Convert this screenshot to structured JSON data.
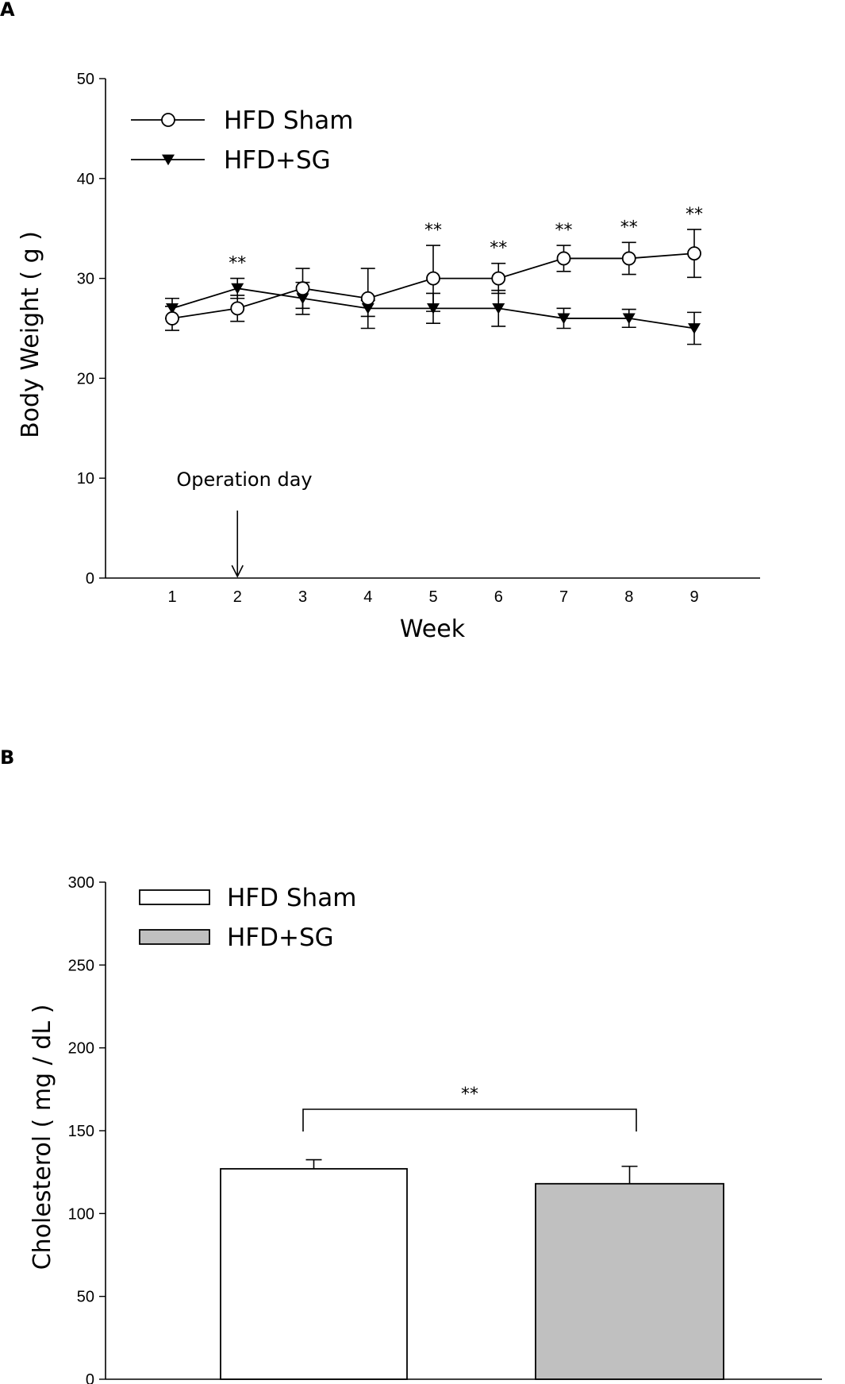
{
  "figure": {
    "panel_a_label": "A",
    "panel_b_label": "B"
  },
  "chart_data": [
    {
      "type": "line",
      "xlabel": "Week",
      "ylabel": "Body Weight ( g )",
      "ylim": [
        0,
        50
      ],
      "yticks": [
        0,
        10,
        20,
        30,
        40,
        50
      ],
      "x": [
        1,
        2,
        3,
        4,
        5,
        6,
        7,
        8,
        9
      ],
      "xtick_labels": [
        "1",
        "2",
        "3",
        "4",
        "5",
        "6",
        "7",
        "8",
        "9"
      ],
      "series": [
        {
          "name": "HFD Sham",
          "marker": "open-circle",
          "values": [
            26,
            27,
            29,
            28,
            30,
            30,
            32,
            32,
            32.5
          ],
          "error": [
            1.2,
            1.3,
            2.0,
            3.0,
            3.3,
            1.5,
            1.3,
            1.6,
            2.4
          ]
        },
        {
          "name": "HFD+SG",
          "marker": "filled-triangle-down",
          "values": [
            27,
            29,
            28,
            27,
            27,
            27,
            26,
            26,
            25
          ],
          "error": [
            1.0,
            1.0,
            1.6,
            0.8,
            1.5,
            1.8,
            1.0,
            0.9,
            1.6
          ]
        }
      ],
      "significance": [
        {
          "x": 2,
          "label": "**"
        },
        {
          "x": 5,
          "label": "**"
        },
        {
          "x": 6,
          "label": "**"
        },
        {
          "x": 7,
          "label": "**"
        },
        {
          "x": 8,
          "label": "**"
        },
        {
          "x": 9,
          "label": "**"
        }
      ],
      "annotation": {
        "text": "Operation day",
        "x": 2
      },
      "legend": "top-left"
    },
    {
      "type": "bar",
      "ylabel": "Cholesterol ( mg / dL )",
      "ylim": [
        0,
        300
      ],
      "yticks": [
        0,
        50,
        100,
        150,
        200,
        250,
        300
      ],
      "categories": [
        "HFD Sham",
        "HFD+SG"
      ],
      "values": [
        127,
        118
      ],
      "error": [
        5.5,
        10.5
      ],
      "colors": [
        "#ffffff",
        "#c0c0c0"
      ],
      "significance": {
        "label": "**",
        "between": [
          "HFD Sham",
          "HFD+SG"
        ]
      },
      "legend": "top-left"
    }
  ]
}
